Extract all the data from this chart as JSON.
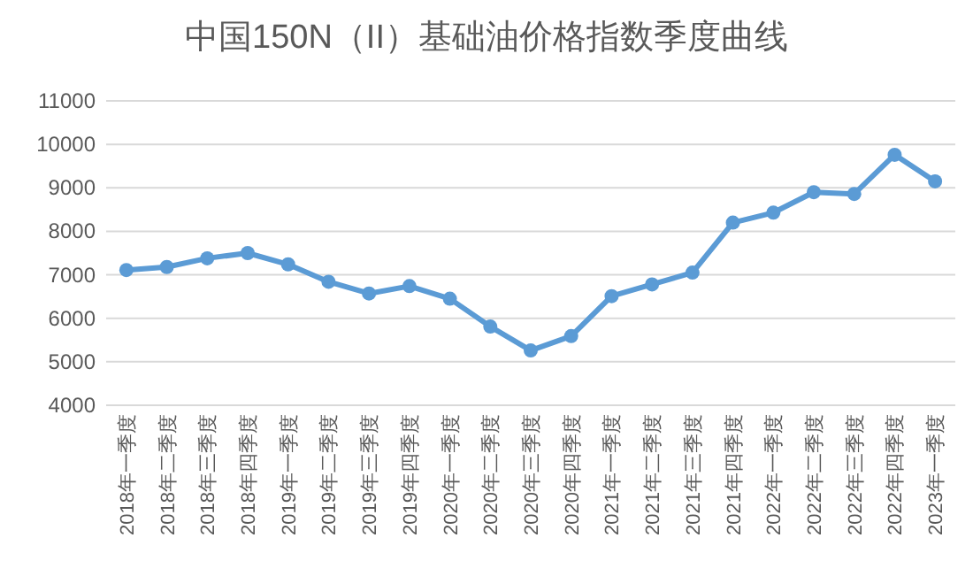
{
  "chart_data": {
    "type": "line",
    "title": "中国150N（II）基础油价格指数季度曲线",
    "categories": [
      "2018年一季度",
      "2018年二季度",
      "2018年三季度",
      "2018年四季度",
      "2019年一季度",
      "2019年二季度",
      "2019年三季度",
      "2019年四季度",
      "2020年一季度",
      "2020年二季度",
      "2020年三季度",
      "2020年四季度",
      "2021年一季度",
      "2021年二季度",
      "2021年三季度",
      "2021年四季度",
      "2022年一季度",
      "2022年二季度",
      "2022年三季度",
      "2022年四季度",
      "2023年一季度"
    ],
    "series": [
      {
        "color": "#5b9bd5",
        "values": [
          7110,
          7180,
          7380,
          7500,
          7240,
          6840,
          6570,
          6740,
          6450,
          5810,
          5260,
          5590,
          6510,
          6780,
          7050,
          8200,
          8430,
          8900,
          8860,
          9760,
          9150
        ]
      }
    ],
    "ylim": [
      4000,
      11000
    ],
    "yticks": [
      4000,
      5000,
      6000,
      7000,
      8000,
      9000,
      10000,
      11000
    ],
    "grid": "y",
    "marker": "circle",
    "line_style": "solid"
  }
}
